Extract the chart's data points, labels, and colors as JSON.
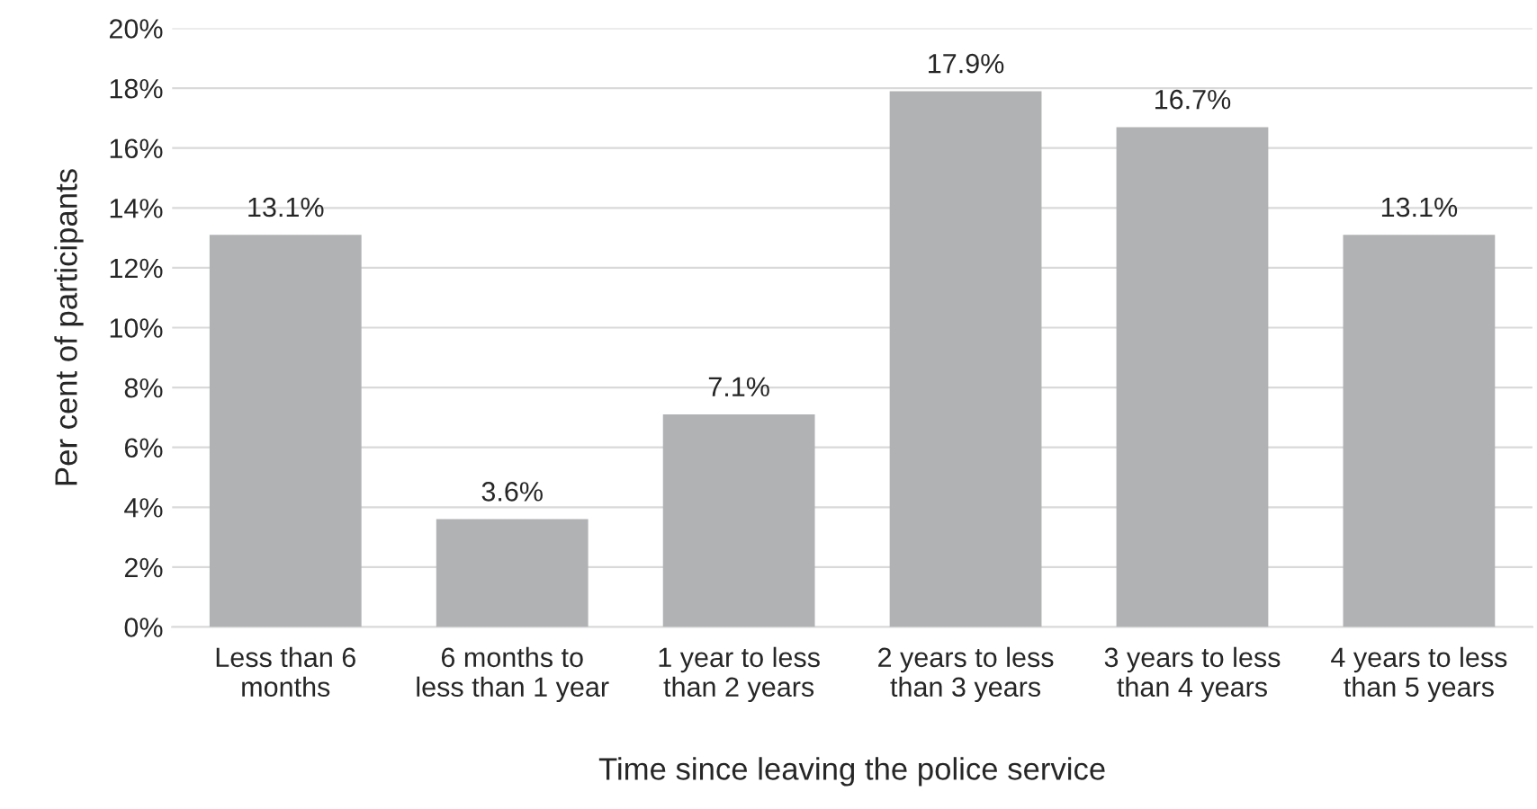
{
  "chart_data": {
    "type": "bar",
    "xlabel": "Time since leaving the police service",
    "ylabel": "Per cent of participants",
    "categories": [
      "Less than 6\nmonths",
      "6 months to\nless than 1 year",
      "1 year to less\nthan 2 years",
      "2 years to less\nthan 3 years",
      "3 years to less\nthan 4 years",
      "4 years to less\nthan 5 years"
    ],
    "values": [
      13.1,
      3.6,
      7.1,
      17.9,
      16.7,
      13.1
    ],
    "value_labels": [
      "13.1%",
      "3.6%",
      "7.1%",
      "17.9%",
      "16.7%",
      "13.1%"
    ],
    "color": "#b1b2b4",
    "ylim": [
      0,
      20
    ],
    "yticks": [
      {
        "value": 0,
        "label": "0%"
      },
      {
        "value": 2,
        "label": "2%"
      },
      {
        "value": 4,
        "label": "4%"
      },
      {
        "value": 6,
        "label": "6%"
      },
      {
        "value": 8,
        "label": "8%"
      },
      {
        "value": 10,
        "label": "10%"
      },
      {
        "value": 12,
        "label": "12%"
      },
      {
        "value": 14,
        "label": "14%"
      },
      {
        "value": 16,
        "label": "16%"
      },
      {
        "value": 18,
        "label": "18%"
      },
      {
        "value": 20,
        "label": "20%"
      }
    ],
    "grid": "y",
    "legend": false
  }
}
